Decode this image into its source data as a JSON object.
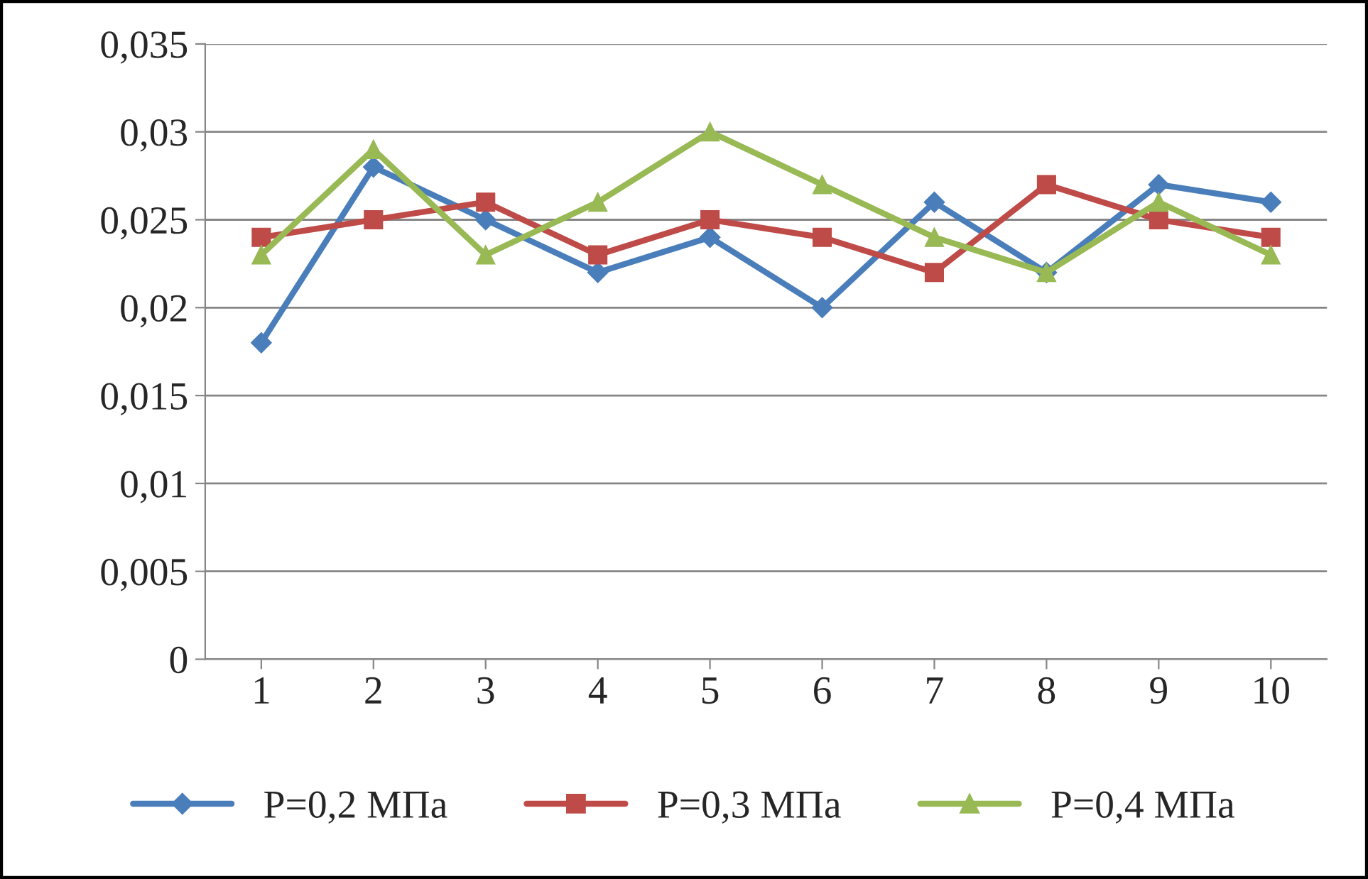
{
  "chart_data": {
    "type": "line",
    "categories": [
      "1",
      "2",
      "3",
      "4",
      "5",
      "6",
      "7",
      "8",
      "9",
      "10"
    ],
    "series": [
      {
        "name": "P=0,2 МПа",
        "color": "#4a7ebb",
        "marker": "diamond",
        "values": [
          0.018,
          0.028,
          0.025,
          0.022,
          0.024,
          0.02,
          0.026,
          0.022,
          0.027,
          0.026
        ]
      },
      {
        "name": "P=0,3 МПа",
        "color": "#be4b48",
        "marker": "square",
        "values": [
          0.024,
          0.025,
          0.026,
          0.023,
          0.025,
          0.024,
          0.022,
          0.027,
          0.025,
          0.024
        ]
      },
      {
        "name": "P=0,4 МПа",
        "color": "#98b954",
        "marker": "triangle",
        "values": [
          0.023,
          0.029,
          0.023,
          0.026,
          0.03,
          0.027,
          0.024,
          0.022,
          0.026,
          0.023
        ]
      }
    ],
    "ylim": [
      0,
      0.035
    ],
    "yticks": [
      0,
      {
        "value": 0.005,
        "label": "0,005"
      },
      {
        "value": 0.01,
        "label": "0,01"
      },
      {
        "value": 0.015,
        "label": "0,015"
      },
      {
        "value": 0.02,
        "label": "0,02"
      },
      {
        "value": 0.025,
        "label": "0,025"
      },
      {
        "value": 0.03,
        "label": "0,03"
      },
      {
        "value": 0.035,
        "label": "0,035"
      }
    ],
    "grid": "y",
    "legend": "bottom",
    "line_style": "solid"
  }
}
